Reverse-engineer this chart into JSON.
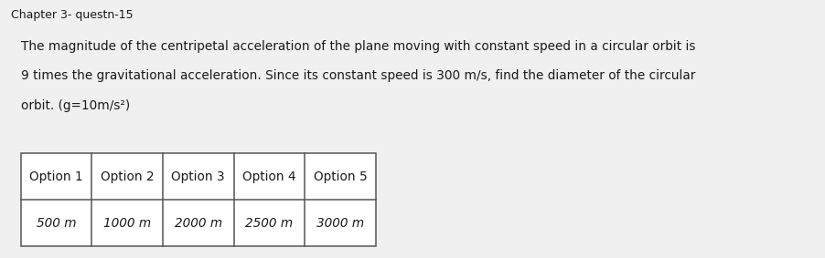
{
  "title": "Chapter 3- questn-15",
  "question_lines": [
    "The magnitude of the centripetal acceleration of the plane moving with constant speed in a circular orbit is",
    "9 times the gravitational acceleration. Since its constant speed is 300 m/s, find the diameter of the circular",
    "orbit. (g=10m/s²)"
  ],
  "table_headers": [
    "Option 1",
    "Option 2",
    "Option 3",
    "Option 4",
    "Option 5"
  ],
  "table_values": [
    "500 ℳ",
    "1000 ℳ",
    "2000 ℳ",
    "2500 ℳ",
    "3000 ℳ"
  ],
  "table_values_display": [
    "500 m",
    "1000 m",
    "2000 m",
    "2500 m",
    "3000 m"
  ],
  "bg_color": "#f0f0f0",
  "text_color": "#1a1a1a",
  "title_fontsize": 9.0,
  "body_fontsize": 9.8,
  "table_header_fontsize": 9.8,
  "table_value_fontsize": 9.8
}
